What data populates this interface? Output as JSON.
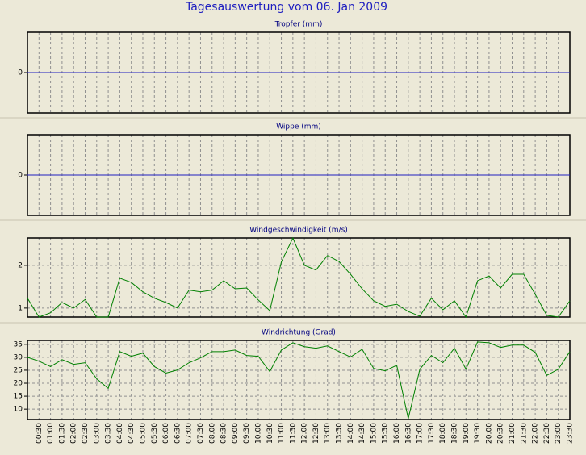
{
  "title": "Tagesauswertung vom 06. Jan 2009",
  "chart_data": [
    {
      "type": "line",
      "title": "Tropfer (mm)",
      "ylim": [
        -1,
        1
      ],
      "yticks": [
        0
      ],
      "grid": true,
      "series": [
        {
          "color": "#2020c0",
          "values": [
            0,
            0,
            0,
            0,
            0,
            0,
            0,
            0,
            0,
            0,
            0,
            0,
            0,
            0,
            0,
            0,
            0,
            0,
            0,
            0,
            0,
            0,
            0,
            0,
            0,
            0,
            0,
            0,
            0,
            0,
            0,
            0,
            0,
            0,
            0,
            0,
            0,
            0,
            0,
            0,
            0,
            0,
            0,
            0,
            0,
            0,
            0,
            0
          ]
        }
      ]
    },
    {
      "type": "line",
      "title": "Wippe (mm)",
      "ylim": [
        -1,
        1
      ],
      "yticks": [
        0
      ],
      "grid": true,
      "series": [
        {
          "color": "#2020c0",
          "values": [
            0,
            0,
            0,
            0,
            0,
            0,
            0,
            0,
            0,
            0,
            0,
            0,
            0,
            0,
            0,
            0,
            0,
            0,
            0,
            0,
            0,
            0,
            0,
            0,
            0,
            0,
            0,
            0,
            0,
            0,
            0,
            0,
            0,
            0,
            0,
            0,
            0,
            0,
            0,
            0,
            0,
            0,
            0,
            0,
            0,
            0,
            0,
            0
          ]
        }
      ]
    },
    {
      "type": "line",
      "title": "Windgeschwindigkeit (m/s)",
      "ylim": [
        0.79,
        2.64
      ],
      "yticks": [
        1,
        2
      ],
      "grid": true,
      "series": [
        {
          "color": "#008000",
          "values": [
            1.23,
            0.79,
            0.89,
            1.13,
            1.0,
            1.2,
            0.79,
            0.79,
            1.7,
            1.6,
            1.38,
            1.23,
            1.13,
            1.0,
            1.42,
            1.38,
            1.42,
            1.64,
            1.45,
            1.47,
            1.19,
            0.94,
            2.08,
            2.64,
            2.0,
            1.89,
            2.23,
            2.09,
            1.79,
            1.45,
            1.17,
            1.04,
            1.09,
            0.92,
            0.81,
            1.23,
            0.96,
            1.17,
            0.79,
            1.64,
            1.75,
            1.47,
            1.79,
            1.79,
            1.32,
            0.83,
            0.79,
            1.17
          ]
        }
      ]
    },
    {
      "type": "line",
      "title": "Windrichtung (Grad)",
      "ylim": [
        6,
        36.5
      ],
      "yticks": [
        10,
        15,
        20,
        25,
        30,
        35
      ],
      "grid": true,
      "categories": [
        null,
        "00:30",
        "01:00",
        "01:30",
        "02:00",
        "02:30",
        "03:00",
        "03:30",
        "04:00",
        "04:30",
        "05:00",
        "05:30",
        "06:00",
        "06:30",
        "07:00",
        "07:30",
        "08:00",
        "08:30",
        "09:00",
        "09:30",
        "10:00",
        "10:30",
        "11:00",
        "11:30",
        "12:00",
        "12:30",
        "13:00",
        "13:30",
        "14:00",
        "14:30",
        "15:00",
        "15:30",
        "16:00",
        "16:30",
        "17:00",
        "17:30",
        "18:00",
        "18:30",
        "19:00",
        "19:30",
        "20:00",
        "20:30",
        "21:00",
        "21:30",
        "22:00",
        "22:30",
        "23:00",
        "23:30"
      ],
      "series": [
        {
          "color": "#008000",
          "values": [
            30,
            28.5,
            26.4,
            29.1,
            27.3,
            27.9,
            21.7,
            18,
            32.2,
            30.4,
            31.6,
            26.4,
            23.9,
            25.1,
            27.9,
            29.8,
            32.2,
            32.2,
            32.8,
            30.7,
            30.4,
            24.5,
            32.8,
            35.6,
            34.1,
            33.5,
            34.4,
            32.2,
            30.1,
            33.1,
            25.7,
            24.8,
            26.9,
            6.3,
            25.4,
            30.7,
            27.9,
            33.5,
            25.4,
            35.9,
            35.6,
            33.8,
            34.7,
            34.7,
            31.9,
            23,
            25.4,
            32.2
          ]
        }
      ]
    }
  ]
}
